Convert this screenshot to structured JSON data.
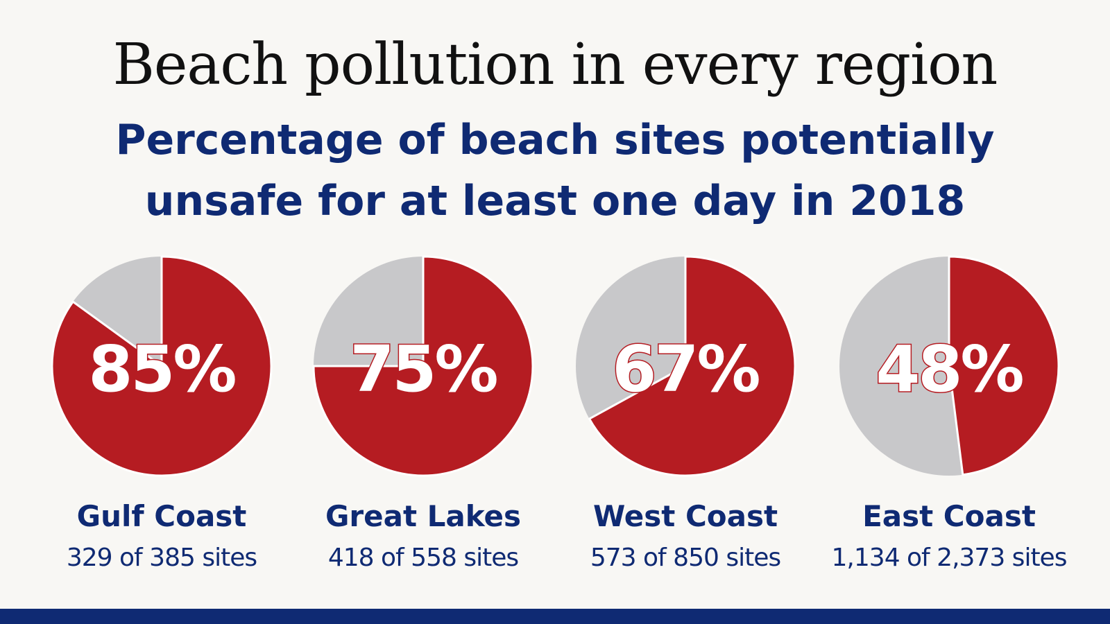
{
  "title": "Beach pollution in every region",
  "subtitle": "Percentage of beach sites potentially unsafe for at least one day in 2018",
  "colors": {
    "unsafe": "#b51c22",
    "safe": "#c8c8ca",
    "accent": "#0f2a73",
    "text": "#111111"
  },
  "chart_data": {
    "type": "pie",
    "title": "Beach pollution in every region",
    "subtitle": "Percentage of beach sites potentially unsafe for at least one day in 2018",
    "charts": [
      {
        "region": "Gulf Coast",
        "percent": 85,
        "percent_label": "85%",
        "sites_label": "329 of 385 sites",
        "unsafe_sites": 329,
        "total_sites": 385
      },
      {
        "region": "Great Lakes",
        "percent": 75,
        "percent_label": "75%",
        "sites_label": "418 of 558 sites",
        "unsafe_sites": 418,
        "total_sites": 558
      },
      {
        "region": "West Coast",
        "percent": 67,
        "percent_label": "67%",
        "sites_label": "573 of 850 sites",
        "unsafe_sites": 573,
        "total_sites": 850
      },
      {
        "region": "East Coast",
        "percent": 48,
        "percent_label": "48%",
        "sites_label": "1,134 of 2,373 sites",
        "unsafe_sites": 1134,
        "total_sites": 2373
      }
    ]
  }
}
